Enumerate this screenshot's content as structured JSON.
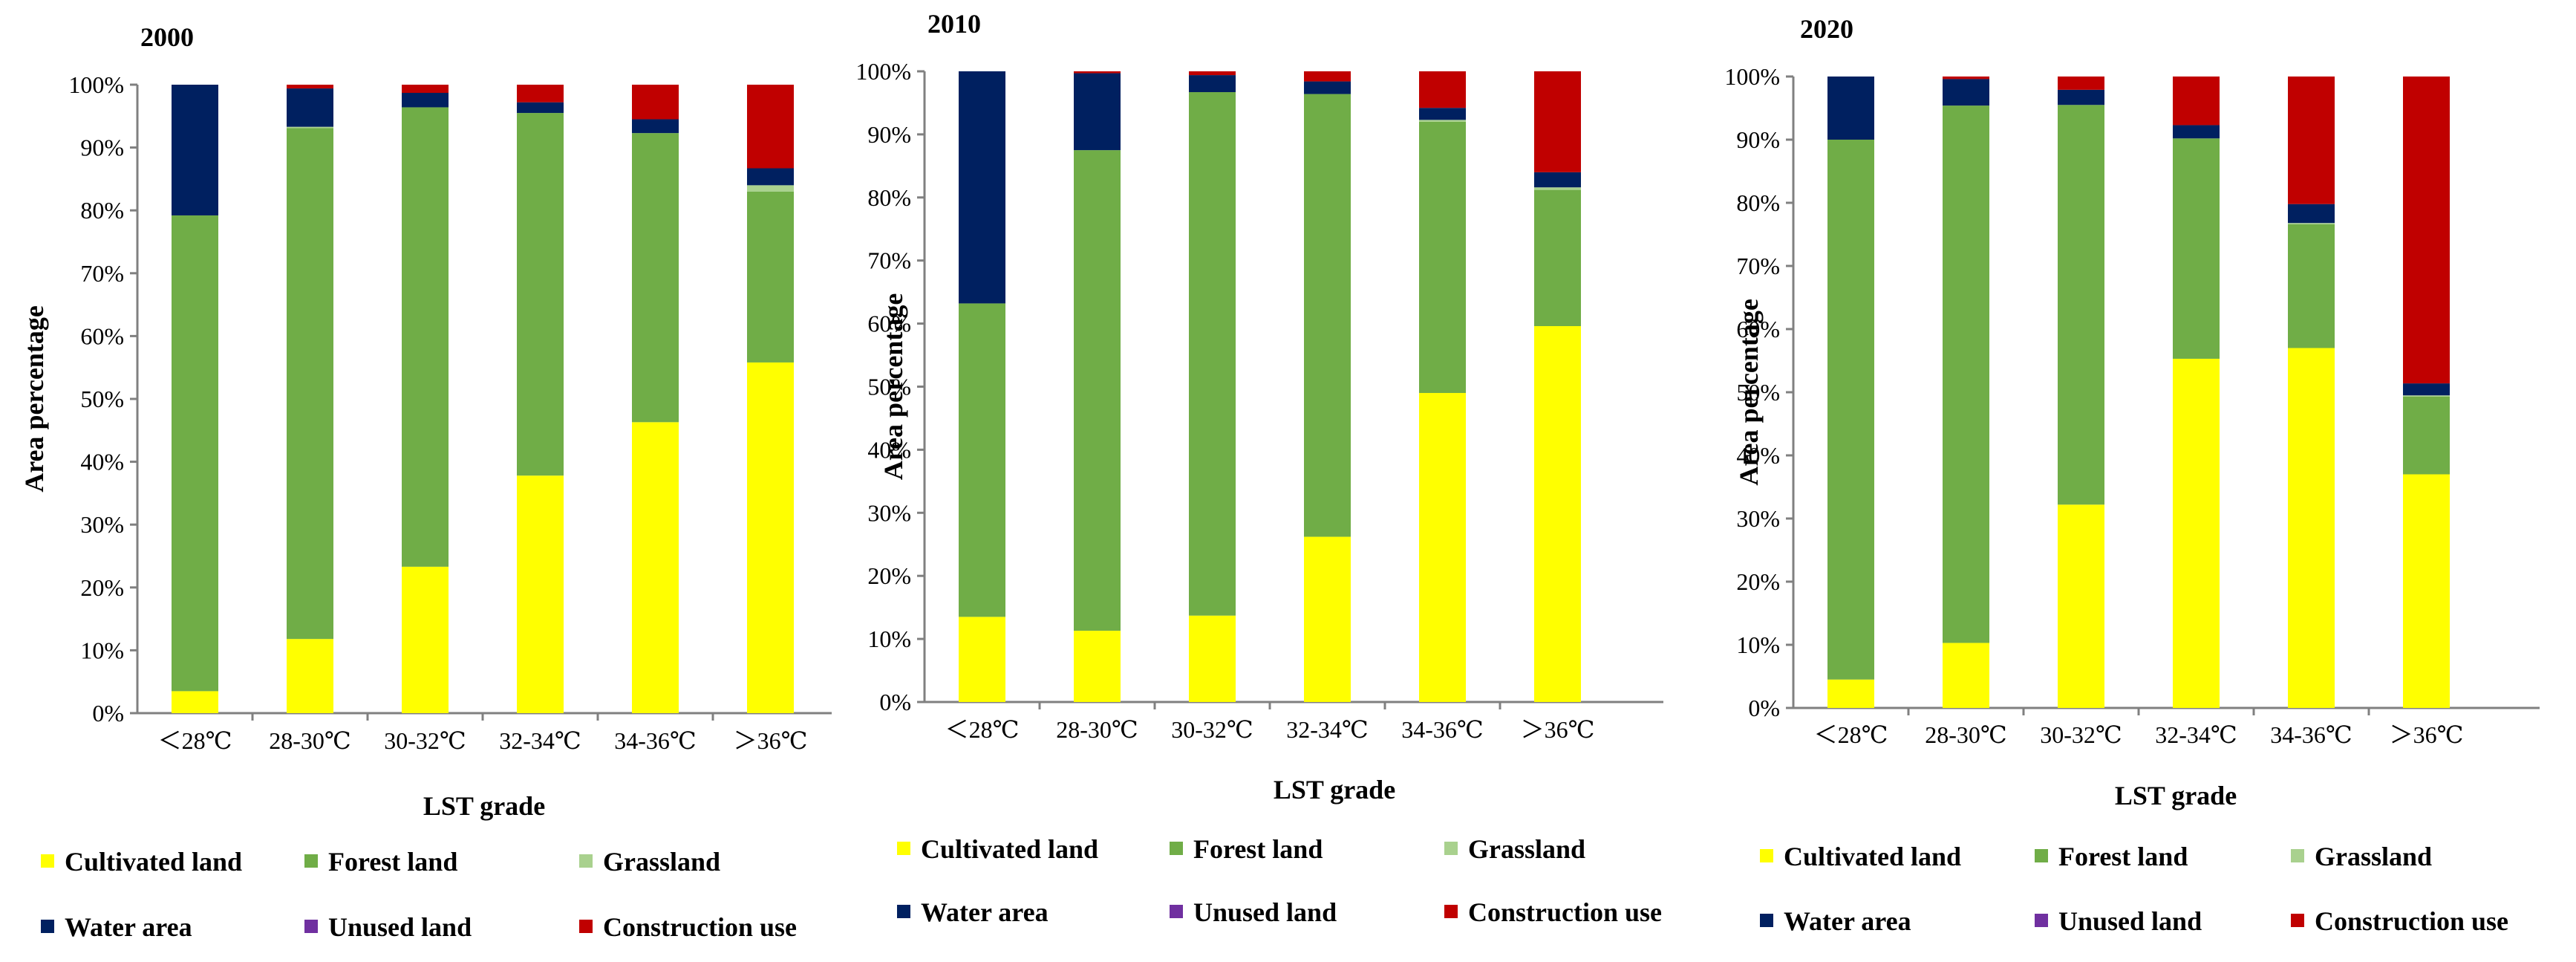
{
  "chart_data": [
    {
      "type": "bar",
      "stacked": true,
      "title": "2000",
      "xlabel": "LST grade",
      "ylabel": "Area percentage",
      "ylim": [
        0,
        100
      ],
      "yticks": [
        "0%",
        "10%",
        "20%",
        "30%",
        "40%",
        "50%",
        "60%",
        "70%",
        "80%",
        "90%",
        "100%"
      ],
      "categories": [
        "＜28℃",
        "28-30℃",
        "30-32℃",
        "32-34℃",
        "34-36℃",
        "＞36℃"
      ],
      "series": [
        {
          "name": "Cultivated land",
          "color": "#ffff00",
          "values": [
            3.5,
            11.8,
            23.3,
            37.8,
            46.3,
            55.8
          ]
        },
        {
          "name": "Forest land",
          "color": "#70ad47",
          "values": [
            75.7,
            81.3,
            73.1,
            57.7,
            46.0,
            27.2
          ]
        },
        {
          "name": "Grassland",
          "color": "#a9d18e",
          "values": [
            0.0,
            0.2,
            0.0,
            0.0,
            0.0,
            1.0
          ]
        },
        {
          "name": "Water area",
          "color": "#002060",
          "values": [
            20.8,
            6.1,
            2.3,
            1.7,
            2.2,
            2.7
          ]
        },
        {
          "name": "Unused land",
          "color": "#7030a0",
          "values": [
            0.0,
            0.0,
            0.0,
            0.0,
            0.0,
            0.0
          ]
        },
        {
          "name": "Construction use",
          "color": "#c00000",
          "values": [
            0.0,
            0.6,
            1.3,
            2.8,
            5.5,
            13.3
          ]
        }
      ]
    },
    {
      "type": "bar",
      "stacked": true,
      "title": "2010",
      "xlabel": "LST grade",
      "ylabel": "Area percentage",
      "ylim": [
        0,
        100
      ],
      "yticks": [
        "0%",
        "10%",
        "20%",
        "30%",
        "40%",
        "50%",
        "60%",
        "70%",
        "80%",
        "90%",
        "100%"
      ],
      "categories": [
        "＜28℃",
        "28-30℃",
        "30-32℃",
        "32-34℃",
        "34-36℃",
        "＞36℃"
      ],
      "series": [
        {
          "name": "Cultivated land",
          "color": "#ffff00",
          "values": [
            13.5,
            11.3,
            13.7,
            26.2,
            49.0,
            59.6
          ]
        },
        {
          "name": "Forest land",
          "color": "#70ad47",
          "values": [
            49.7,
            76.2,
            83.0,
            70.2,
            43.0,
            21.6
          ]
        },
        {
          "name": "Grassland",
          "color": "#a9d18e",
          "values": [
            0.0,
            0.0,
            0.0,
            0.0,
            0.3,
            0.4
          ]
        },
        {
          "name": "Water area",
          "color": "#002060",
          "values": [
            36.8,
            12.2,
            2.7,
            2.0,
            1.9,
            2.4
          ]
        },
        {
          "name": "Unused land",
          "color": "#7030a0",
          "values": [
            0.0,
            0.0,
            0.0,
            0.0,
            0.0,
            0.0
          ]
        },
        {
          "name": "Construction use",
          "color": "#c00000",
          "values": [
            0.0,
            0.3,
            0.6,
            1.6,
            5.8,
            16.0
          ]
        }
      ]
    },
    {
      "type": "bar",
      "stacked": true,
      "title": "2020",
      "xlabel": "LST grade",
      "ylabel": "Area percentage",
      "ylim": [
        0,
        100
      ],
      "yticks": [
        "0%",
        "10%",
        "20%",
        "30%",
        "40%",
        "50%",
        "60%",
        "70%",
        "80%",
        "90%",
        "100%"
      ],
      "categories": [
        "＜28℃",
        "28-30℃",
        "30-32℃",
        "32-34℃",
        "34-36℃",
        "＞36℃"
      ],
      "series": [
        {
          "name": "Cultivated land",
          "color": "#ffff00",
          "values": [
            4.5,
            10.3,
            32.2,
            55.3,
            57.0,
            37.0
          ]
        },
        {
          "name": "Forest land",
          "color": "#70ad47",
          "values": [
            85.5,
            85.1,
            63.3,
            34.9,
            19.6,
            12.3
          ]
        },
        {
          "name": "Grassland",
          "color": "#a9d18e",
          "values": [
            0.0,
            0.0,
            0.0,
            0.0,
            0.2,
            0.2
          ]
        },
        {
          "name": "Water area",
          "color": "#002060",
          "values": [
            10.0,
            4.2,
            2.4,
            2.1,
            3.0,
            1.9
          ]
        },
        {
          "name": "Unused land",
          "color": "#7030a0",
          "values": [
            0.0,
            0.0,
            0.0,
            0.0,
            0.0,
            0.0
          ]
        },
        {
          "name": "Construction use",
          "color": "#c00000",
          "values": [
            0.0,
            0.4,
            2.1,
            7.7,
            20.2,
            48.6
          ]
        }
      ]
    }
  ]
}
